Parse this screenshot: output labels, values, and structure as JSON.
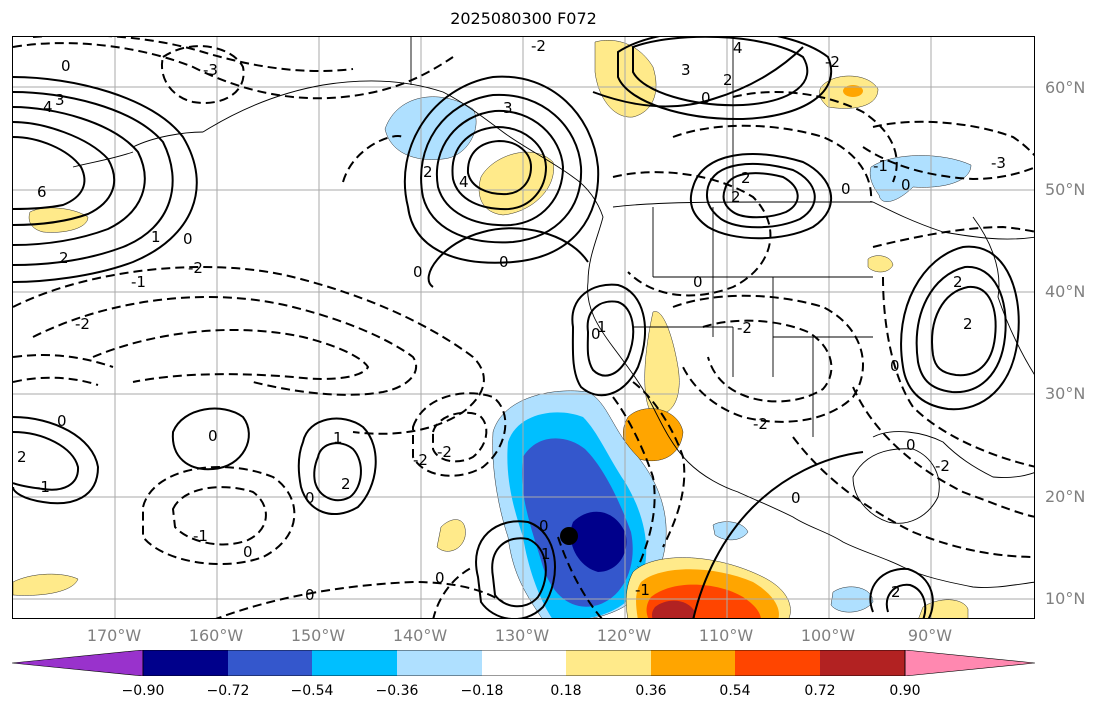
{
  "title": "2025080300 F072",
  "lat_labels": [
    "60°N",
    "50°N",
    "40°N",
    "30°N",
    "20°N",
    "10°N"
  ],
  "lon_labels": [
    "170°W",
    "160°W",
    "150°W",
    "140°W",
    "130°W",
    "120°W",
    "110°W",
    "100°W",
    "90°W"
  ],
  "colorbar": {
    "ticks": [
      "−0.90",
      "−0.72",
      "−0.54",
      "−0.36",
      "−0.18",
      "0.18",
      "0.36",
      "0.54",
      "0.72",
      "0.90"
    ],
    "colors": [
      "#9932cc",
      "#00008b",
      "#3457cc",
      "#00bfff",
      "#afe0ff",
      "#ffffff",
      "#ffea8a",
      "#ffa500",
      "#ff4500",
      "#b22222",
      "#ff88b0"
    ]
  },
  "contour_labels": [
    "0",
    "1",
    "2",
    "3",
    "4",
    "6",
    "-1",
    "-2",
    "-3"
  ],
  "colors": {
    "contour": "#000000",
    "grid": "#aaaaaa",
    "tick_label": "#808080"
  }
}
